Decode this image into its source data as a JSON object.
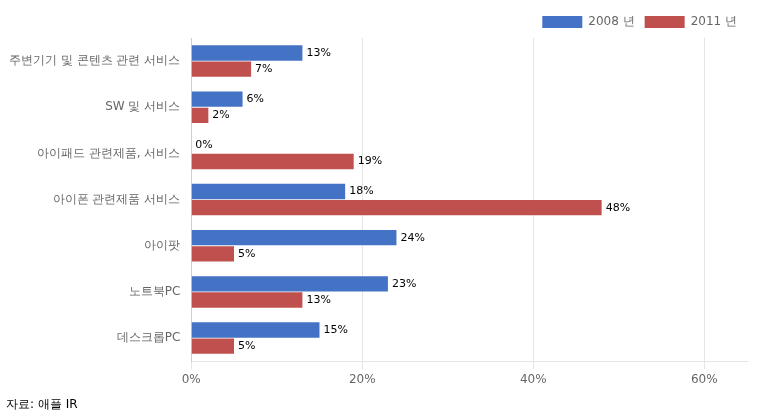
{
  "chart_data": {
    "type": "bar",
    "orientation": "horizontal",
    "categories": [
      "데스크롭PC",
      "노트북PC",
      "아이팟",
      "아이폰 관련제품 서비스",
      "아이패드 관련제품, 서비스",
      "SW 및 서비스",
      "주변기기 및 콘텐츠 관련 서비스"
    ],
    "series": [
      {
        "name": "2008 년",
        "color": "#4472C4",
        "values": [
          15,
          23,
          24,
          18,
          0,
          6,
          13
        ],
        "value_labels": [
          "15%",
          "23%",
          "24%",
          "18%",
          "0%",
          "6%",
          "13%"
        ]
      },
      {
        "name": "2011 년",
        "color": "#C0504D",
        "values": [
          5,
          13,
          5,
          48,
          19,
          2,
          7
        ],
        "value_labels": [
          "5%",
          "13%",
          "5%",
          "48%",
          "19%",
          "2%",
          "7%"
        ]
      }
    ],
    "xlim": [
      0,
      65
    ],
    "xticks": [
      {
        "value": 0,
        "label": "0%"
      },
      {
        "value": 20,
        "label": "20%"
      },
      {
        "value": 40,
        "label": "40%"
      },
      {
        "value": 60,
        "label": "60%"
      }
    ],
    "data_labels": true,
    "grid": true,
    "legend": "upper right",
    "annotations": [
      "자료: 애플 IR"
    ]
  }
}
